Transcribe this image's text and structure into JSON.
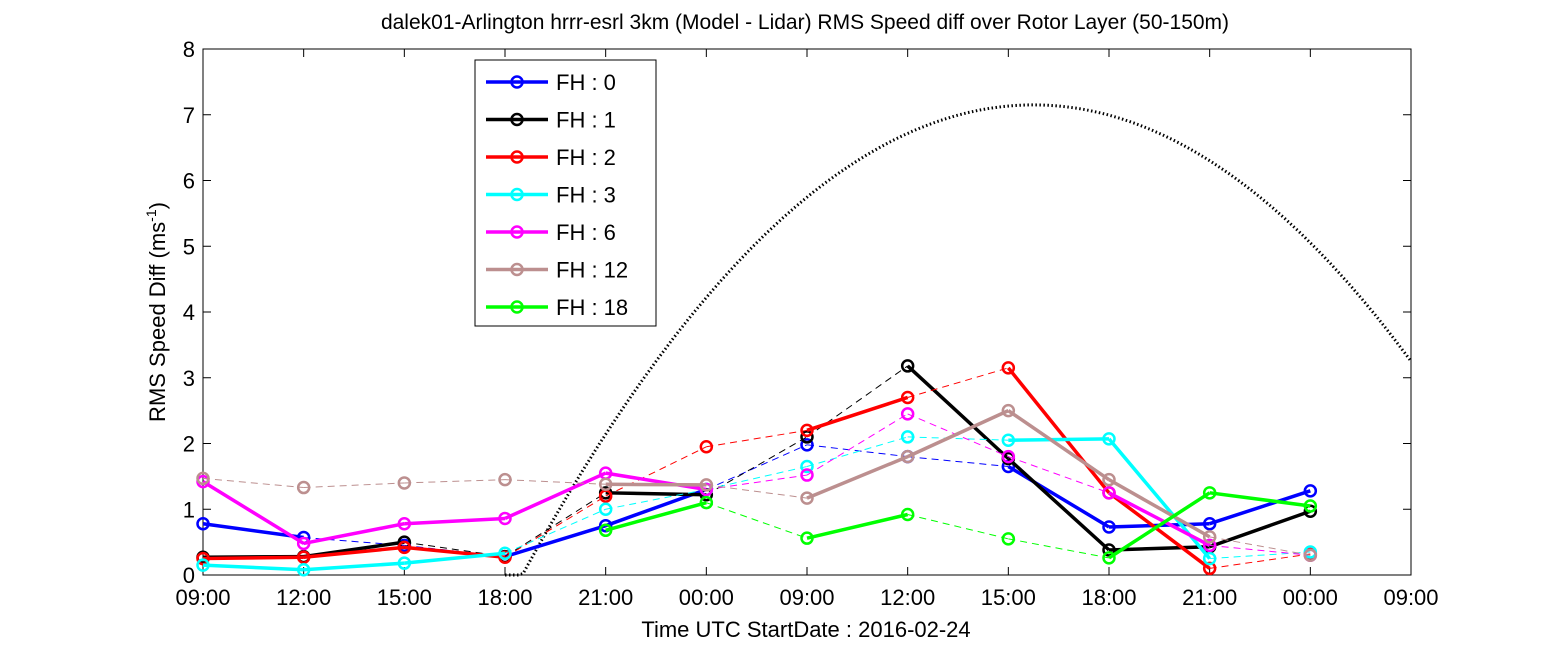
{
  "chart_data": {
    "type": "line",
    "title": "dalek01-Arlington hrrr-esrl 3km (Model - Lidar) RMS Speed diff over Rotor Layer (50-150m)",
    "ylabel": "RMS Speed Diff (ms",
    "ylabel_sup": "-1",
    "ylabel_close": ")",
    "xlabel": "Time UTC    StartDate : 2016-02-24",
    "x_ticks": [
      "09:00",
      "12:00",
      "15:00",
      "18:00",
      "21:00",
      "00:00",
      "09:00",
      "12:00",
      "15:00",
      "18:00",
      "21:00",
      "00:00",
      "09:00"
    ],
    "y_ticks": [
      "0",
      "1",
      "2",
      "3",
      "4",
      "5",
      "6",
      "7",
      "8"
    ],
    "ylim": [
      0,
      8
    ],
    "xlim": [
      0,
      12
    ],
    "grid": false,
    "legend_position": "top-left",
    "series": [
      {
        "name": "FH : 0",
        "color": "#0000ff",
        "points": [
          [
            0,
            0.78
          ],
          [
            1,
            0.57
          ],
          [
            2,
            0.45
          ],
          [
            3,
            0.28
          ],
          [
            4,
            0.75
          ],
          [
            5,
            1.3
          ],
          [
            6,
            1.98
          ],
          [
            7,
            1.8
          ],
          [
            8,
            1.65
          ],
          [
            9,
            0.73
          ],
          [
            10,
            0.78
          ],
          [
            11,
            1.28
          ]
        ]
      },
      {
        "name": "FH : 1",
        "color": "#000000",
        "points": [
          [
            0,
            0.27
          ],
          [
            1,
            0.28
          ],
          [
            2,
            0.5
          ],
          [
            3,
            0.28
          ],
          [
            4,
            1.25
          ],
          [
            5,
            1.22
          ],
          [
            6,
            2.1
          ],
          [
            7,
            3.18
          ],
          [
            8,
            1.77
          ],
          [
            9,
            0.38
          ],
          [
            10,
            0.43
          ],
          [
            11,
            0.97
          ]
        ]
      },
      {
        "name": "FH : 2",
        "color": "#ff0000",
        "points": [
          [
            0,
            0.25
          ],
          [
            1,
            0.27
          ],
          [
            2,
            0.42
          ],
          [
            3,
            0.27
          ],
          [
            4,
            1.2
          ],
          [
            5,
            1.95
          ],
          [
            6,
            2.2
          ],
          [
            7,
            2.7
          ],
          [
            8,
            3.15
          ],
          [
            9,
            1.25
          ],
          [
            10,
            0.1
          ],
          [
            11,
            0.32
          ]
        ]
      },
      {
        "name": "FH : 3",
        "color": "#00ffff",
        "points": [
          [
            0,
            0.15
          ],
          [
            1,
            0.08
          ],
          [
            2,
            0.18
          ],
          [
            3,
            0.33
          ],
          [
            4,
            1.0
          ],
          [
            5,
            1.3
          ],
          [
            6,
            1.65
          ],
          [
            7,
            2.1
          ],
          [
            8,
            2.05
          ],
          [
            9,
            2.07
          ],
          [
            10,
            0.25
          ],
          [
            11,
            0.35
          ]
        ]
      },
      {
        "name": "FH : 6",
        "color": "#ff00ff",
        "points": [
          [
            0,
            1.42
          ],
          [
            1,
            0.48
          ],
          [
            2,
            0.78
          ],
          [
            3,
            0.86
          ],
          [
            4,
            1.55
          ],
          [
            5,
            1.3
          ],
          [
            6,
            1.52
          ],
          [
            7,
            2.45
          ],
          [
            8,
            1.8
          ],
          [
            9,
            1.25
          ],
          [
            10,
            0.45
          ],
          [
            11,
            0.3
          ]
        ]
      },
      {
        "name": "FH : 12",
        "color": "#bc8f8f",
        "points": [
          [
            0,
            1.47
          ],
          [
            1,
            1.33
          ],
          [
            2,
            1.4
          ],
          [
            3,
            1.45
          ],
          [
            4,
            1.38
          ],
          [
            5,
            1.37
          ],
          [
            6,
            1.17
          ],
          [
            7,
            1.8
          ],
          [
            8,
            2.5
          ],
          [
            9,
            1.45
          ],
          [
            10,
            0.58
          ],
          [
            11,
            0.3
          ]
        ]
      },
      {
        "name": "FH : 18",
        "color": "#00ff00",
        "points": [
          [
            4,
            0.68
          ],
          [
            5,
            1.1
          ],
          [
            6,
            0.56
          ],
          [
            7,
            0.92
          ],
          [
            8,
            0.55
          ],
          [
            9,
            0.26
          ],
          [
            10,
            1.25
          ],
          [
            11,
            1.05
          ]
        ]
      }
    ],
    "dotted_curve": {
      "name": "",
      "color": "#000000",
      "type": "dotted",
      "x_start": 3,
      "x_peak": 8.25,
      "y_peak": 7.15,
      "x_end": 12,
      "y_end": 3.25
    }
  }
}
